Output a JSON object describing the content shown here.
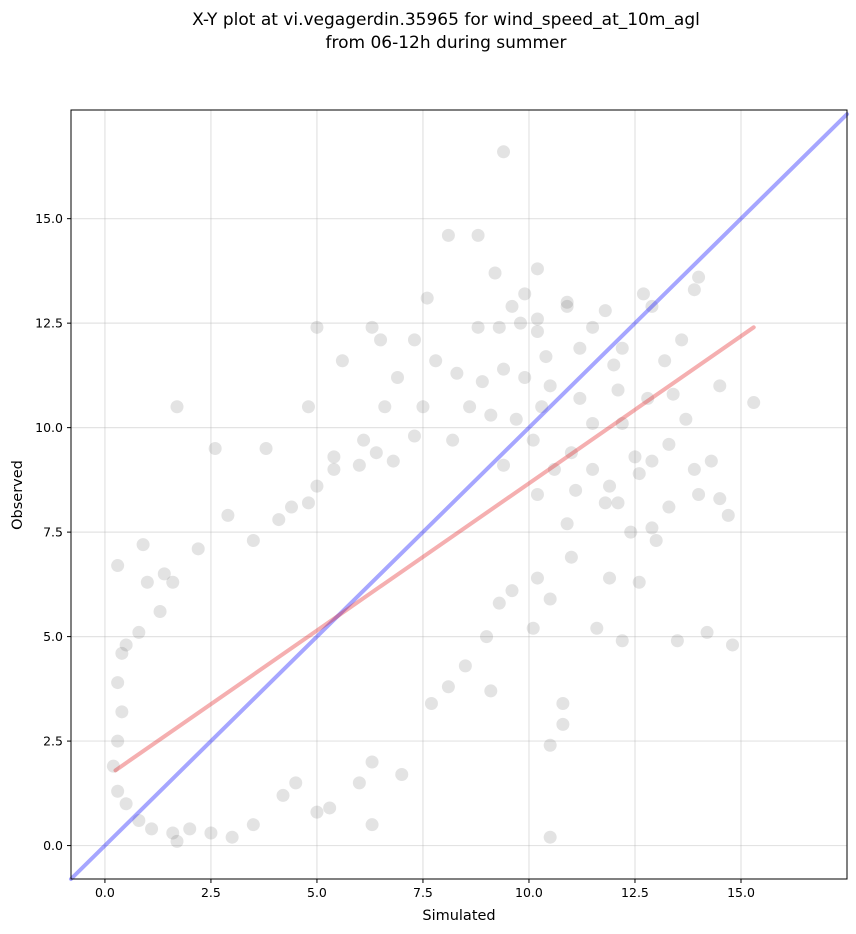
{
  "chart_data": {
    "type": "scatter",
    "title": [
      "X-Y plot at vi.vegagerdin.35965 for wind_speed_at_10m_agl",
      "from 06-12h during summer"
    ],
    "xlabel": "Simulated",
    "ylabel": "Observed",
    "xlim": [
      -0.8,
      17.5
    ],
    "ylim": [
      -0.8,
      17.6
    ],
    "xticks": [
      0.0,
      2.5,
      5.0,
      7.5,
      10.0,
      12.5,
      15.0
    ],
    "yticks": [
      0.0,
      2.5,
      5.0,
      7.5,
      10.0,
      12.5,
      15.0
    ],
    "xtick_labels": [
      "0.0",
      "2.5",
      "5.0",
      "7.5",
      "10.0",
      "12.5",
      "15.0"
    ],
    "ytick_labels": [
      "0.0",
      "2.5",
      "5.0",
      "7.5",
      "10.0",
      "12.5",
      "15.0"
    ],
    "grid": true,
    "point_color": "#3c3c3c",
    "point_alpha": 0.14,
    "identity_line": {
      "color": "#0000ff",
      "alpha": 0.35,
      "x": [
        -0.8,
        17.5
      ],
      "y": [
        -0.8,
        17.5
      ]
    },
    "fit_line": {
      "color": "#e31a1c",
      "alpha": 0.35,
      "x": [
        0.25,
        15.3
      ],
      "y": [
        1.8,
        12.4
      ]
    },
    "points": [
      [
        9.4,
        16.6
      ],
      [
        8.1,
        14.6
      ],
      [
        8.8,
        14.6
      ],
      [
        10.2,
        13.8
      ],
      [
        9.2,
        13.7
      ],
      [
        7.6,
        13.1
      ],
      [
        14.0,
        13.6
      ],
      [
        12.7,
        13.2
      ],
      [
        13.9,
        13.3
      ],
      [
        12.9,
        12.9
      ],
      [
        10.9,
        13.0
      ],
      [
        10.9,
        12.9
      ],
      [
        11.8,
        12.8
      ],
      [
        9.6,
        12.9
      ],
      [
        9.9,
        13.2
      ],
      [
        5.0,
        12.4
      ],
      [
        6.3,
        12.4
      ],
      [
        10.2,
        12.6
      ],
      [
        8.8,
        12.4
      ],
      [
        9.3,
        12.4
      ],
      [
        9.8,
        12.5
      ],
      [
        10.2,
        12.3
      ],
      [
        11.5,
        12.4
      ],
      [
        12.2,
        11.9
      ],
      [
        13.6,
        12.1
      ],
      [
        6.5,
        12.1
      ],
      [
        7.3,
        12.1
      ],
      [
        10.4,
        11.7
      ],
      [
        11.2,
        11.9
      ],
      [
        5.6,
        11.6
      ],
      [
        7.8,
        11.6
      ],
      [
        9.4,
        11.4
      ],
      [
        6.9,
        11.2
      ],
      [
        8.3,
        11.3
      ],
      [
        8.9,
        11.1
      ],
      [
        9.9,
        11.2
      ],
      [
        13.2,
        11.6
      ],
      [
        12.0,
        11.5
      ],
      [
        10.5,
        11.0
      ],
      [
        12.1,
        10.9
      ],
      [
        14.5,
        11.0
      ],
      [
        13.4,
        10.8
      ],
      [
        12.8,
        10.7
      ],
      [
        11.2,
        10.7
      ],
      [
        10.3,
        10.5
      ],
      [
        1.7,
        10.5
      ],
      [
        4.8,
        10.5
      ],
      [
        6.6,
        10.5
      ],
      [
        7.5,
        10.5
      ],
      [
        8.6,
        10.5
      ],
      [
        9.1,
        10.3
      ],
      [
        9.7,
        10.2
      ],
      [
        11.5,
        10.1
      ],
      [
        12.2,
        10.1
      ],
      [
        13.7,
        10.2
      ],
      [
        15.3,
        10.6
      ],
      [
        6.1,
        9.7
      ],
      [
        7.3,
        9.8
      ],
      [
        8.2,
        9.7
      ],
      [
        10.1,
        9.7
      ],
      [
        11.0,
        9.4
      ],
      [
        12.5,
        9.3
      ],
      [
        13.3,
        9.6
      ],
      [
        14.3,
        9.2
      ],
      [
        2.6,
        9.5
      ],
      [
        3.8,
        9.5
      ],
      [
        5.4,
        9.3
      ],
      [
        6.4,
        9.4
      ],
      [
        9.4,
        9.1
      ],
      [
        10.6,
        9.0
      ],
      [
        11.5,
        9.0
      ],
      [
        12.9,
        9.2
      ],
      [
        13.9,
        9.0
      ],
      [
        14.0,
        8.4
      ],
      [
        12.6,
        8.9
      ],
      [
        11.9,
        8.6
      ],
      [
        11.1,
        8.5
      ],
      [
        10.2,
        8.4
      ],
      [
        14.5,
        8.3
      ],
      [
        14.7,
        7.9
      ],
      [
        13.3,
        8.1
      ],
      [
        12.1,
        8.2
      ],
      [
        11.8,
        8.2
      ],
      [
        10.9,
        7.7
      ],
      [
        12.4,
        7.5
      ],
      [
        13.0,
        7.3
      ],
      [
        12.9,
        7.6
      ],
      [
        11.0,
        6.9
      ],
      [
        10.2,
        6.4
      ],
      [
        11.9,
        6.4
      ],
      [
        12.6,
        6.3
      ],
      [
        10.5,
        5.9
      ],
      [
        10.1,
        5.2
      ],
      [
        11.6,
        5.2
      ],
      [
        12.2,
        4.9
      ],
      [
        13.5,
        4.9
      ],
      [
        14.2,
        5.1
      ],
      [
        14.8,
        4.8
      ],
      [
        10.8,
        3.4
      ],
      [
        10.8,
        2.9
      ],
      [
        10.5,
        2.4
      ],
      [
        10.5,
        0.2
      ],
      [
        9.1,
        3.7
      ],
      [
        8.5,
        4.3
      ],
      [
        9.0,
        5.0
      ],
      [
        9.3,
        5.8
      ],
      [
        9.6,
        6.1
      ],
      [
        8.1,
        3.8
      ],
      [
        7.7,
        3.4
      ],
      [
        7.0,
        1.7
      ],
      [
        6.3,
        2.0
      ],
      [
        6.0,
        1.5
      ],
      [
        6.3,
        0.5
      ],
      [
        5.3,
        0.9
      ],
      [
        5.0,
        0.8
      ],
      [
        4.5,
        1.5
      ],
      [
        4.2,
        1.2
      ],
      [
        3.5,
        0.5
      ],
      [
        3.0,
        0.2
      ],
      [
        2.5,
        0.3
      ],
      [
        2.0,
        0.4
      ],
      [
        1.7,
        0.1
      ],
      [
        1.6,
        0.3
      ],
      [
        1.1,
        0.4
      ],
      [
        0.8,
        0.6
      ],
      [
        0.5,
        1.0
      ],
      [
        0.3,
        1.3
      ],
      [
        0.2,
        1.9
      ],
      [
        0.3,
        2.5
      ],
      [
        0.4,
        3.2
      ],
      [
        0.3,
        3.9
      ],
      [
        0.4,
        4.6
      ],
      [
        0.5,
        4.8
      ],
      [
        0.8,
        5.1
      ],
      [
        1.3,
        5.6
      ],
      [
        1.0,
        6.3
      ],
      [
        0.9,
        7.2
      ],
      [
        0.3,
        6.7
      ],
      [
        1.6,
        6.3
      ],
      [
        1.4,
        6.5
      ],
      [
        2.2,
        7.1
      ],
      [
        2.9,
        7.9
      ],
      [
        3.5,
        7.3
      ],
      [
        4.1,
        7.8
      ],
      [
        4.4,
        8.1
      ],
      [
        4.8,
        8.2
      ],
      [
        5.0,
        8.6
      ],
      [
        5.4,
        9.0
      ],
      [
        6.0,
        9.1
      ],
      [
        6.8,
        9.2
      ]
    ]
  }
}
